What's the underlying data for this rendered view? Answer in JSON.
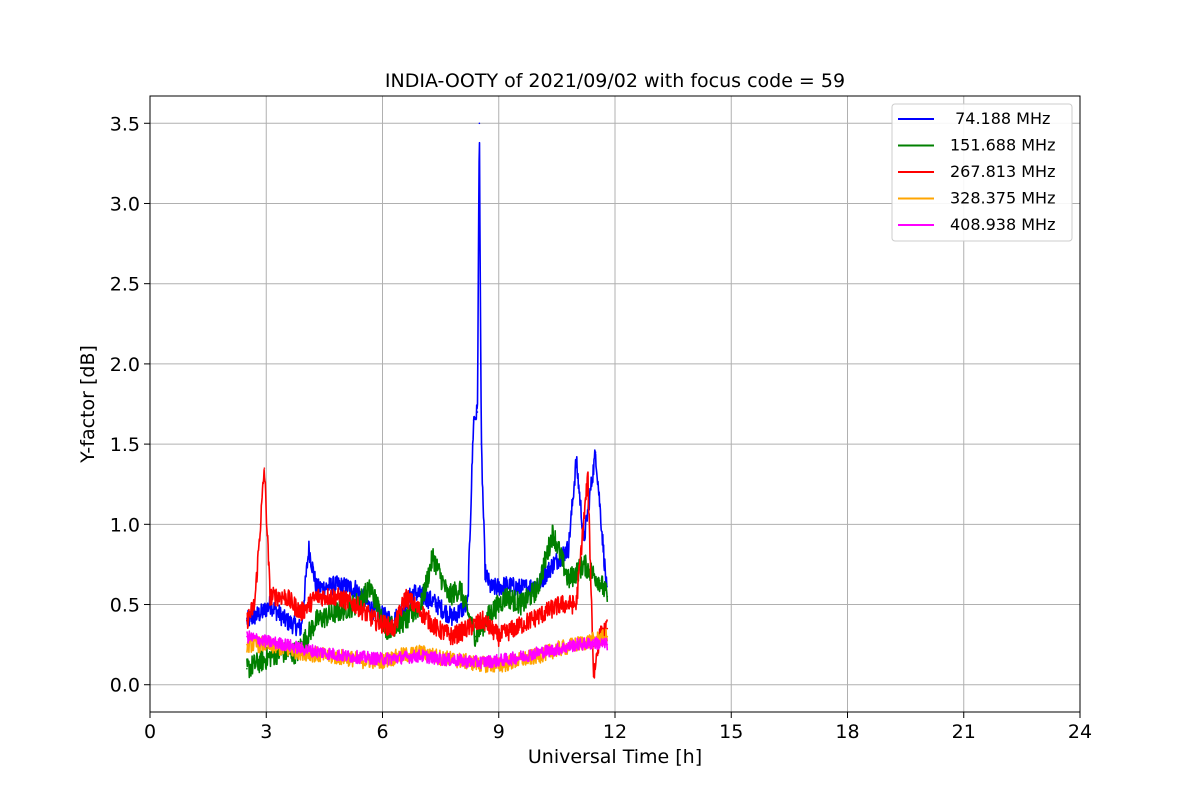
{
  "chart_data": {
    "type": "line",
    "title": "INDIA-OOTY of 2021/09/02 with focus code = 59",
    "xlabel": "Universal Time [h]",
    "ylabel": "Y-factor [dB]",
    "xlim": [
      0,
      24
    ],
    "ylim": [
      -0.17,
      3.67
    ],
    "x_ticks": [
      0,
      3,
      6,
      9,
      12,
      15,
      18,
      21,
      24
    ],
    "x_tick_labels": [
      "0",
      "3",
      "6",
      "9",
      "12",
      "15",
      "18",
      "21",
      "24"
    ],
    "y_ticks": [
      0.0,
      0.5,
      1.0,
      1.5,
      2.0,
      2.5,
      3.0,
      3.5
    ],
    "y_tick_labels": [
      "0.0",
      "0.5",
      "1.0",
      "1.5",
      "2.0",
      "2.5",
      "3.0",
      "3.5"
    ],
    "grid": true,
    "legend_position": "top-right",
    "series": [
      {
        "name": " 74.188 MHz",
        "color": "#0000ff",
        "x": [
          2.5,
          2.9,
          3.1,
          3.5,
          3.9,
          4.1,
          4.3,
          4.8,
          5.3,
          5.8,
          6.3,
          6.8,
          7.3,
          7.8,
          8.2,
          8.35,
          8.45,
          8.5,
          8.55,
          8.65,
          8.8,
          9.2,
          9.6,
          10.0,
          10.4,
          10.8,
          11.0,
          11.2,
          11.5,
          11.8
        ],
        "values": [
          0.4,
          0.45,
          0.5,
          0.4,
          0.35,
          0.85,
          0.6,
          0.62,
          0.6,
          0.45,
          0.4,
          0.58,
          0.52,
          0.42,
          0.5,
          1.65,
          1.7,
          3.5,
          1.5,
          0.7,
          0.6,
          0.62,
          0.6,
          0.62,
          0.75,
          0.85,
          1.4,
          0.9,
          1.45,
          0.55
        ],
        "noise": 0.06
      },
      {
        "name": "151.688 MHz",
        "color": "#008000",
        "x": [
          2.5,
          2.9,
          3.3,
          3.8,
          4.3,
          4.8,
          5.3,
          5.7,
          6.1,
          6.6,
          7.0,
          7.3,
          7.7,
          8.0,
          8.4,
          8.8,
          9.2,
          9.6,
          10.0,
          10.4,
          10.8,
          11.2,
          11.6,
          11.8
        ],
        "values": [
          0.1,
          0.15,
          0.2,
          0.2,
          0.4,
          0.45,
          0.5,
          0.6,
          0.35,
          0.4,
          0.5,
          0.8,
          0.55,
          0.6,
          0.3,
          0.45,
          0.55,
          0.5,
          0.6,
          0.95,
          0.65,
          0.75,
          0.65,
          0.55
        ],
        "noise": 0.07
      },
      {
        "name": "267.813 MHz",
        "color": "#ff0000",
        "x": [
          2.5,
          2.7,
          2.85,
          2.95,
          3.1,
          3.5,
          3.9,
          4.3,
          4.8,
          5.3,
          5.8,
          6.3,
          6.6,
          7.0,
          7.4,
          7.8,
          8.2,
          8.6,
          9.0,
          9.4,
          9.8,
          10.2,
          10.6,
          11.0,
          11.3,
          11.45,
          11.6,
          11.8
        ],
        "values": [
          0.4,
          0.5,
          1.0,
          1.35,
          0.55,
          0.55,
          0.45,
          0.55,
          0.55,
          0.5,
          0.4,
          0.35,
          0.55,
          0.45,
          0.35,
          0.3,
          0.35,
          0.4,
          0.3,
          0.35,
          0.4,
          0.45,
          0.5,
          0.5,
          1.3,
          0.05,
          0.3,
          0.35
        ],
        "noise": 0.06
      },
      {
        "name": "328.375 MHz",
        "color": "#ffa500",
        "x": [
          2.5,
          3.0,
          3.5,
          4.0,
          4.5,
          5.0,
          5.5,
          6.0,
          6.5,
          7.0,
          7.5,
          8.0,
          8.5,
          9.0,
          9.5,
          10.0,
          10.5,
          11.0,
          11.5,
          11.8
        ],
        "values": [
          0.25,
          0.25,
          0.22,
          0.2,
          0.18,
          0.17,
          0.15,
          0.15,
          0.18,
          0.2,
          0.17,
          0.15,
          0.13,
          0.12,
          0.15,
          0.18,
          0.22,
          0.25,
          0.28,
          0.3
        ],
        "noise": 0.05
      },
      {
        "name": "408.938 MHz",
        "color": "#ff00ff",
        "x": [
          2.5,
          3.0,
          3.5,
          4.0,
          4.5,
          5.0,
          5.5,
          6.0,
          6.5,
          7.0,
          7.5,
          8.0,
          8.5,
          9.0,
          9.5,
          10.0,
          10.5,
          11.0,
          11.5,
          11.8
        ],
        "values": [
          0.3,
          0.27,
          0.25,
          0.22,
          0.2,
          0.18,
          0.17,
          0.16,
          0.17,
          0.18,
          0.16,
          0.15,
          0.14,
          0.15,
          0.17,
          0.2,
          0.22,
          0.25,
          0.26,
          0.25
        ],
        "noise": 0.04
      }
    ]
  }
}
